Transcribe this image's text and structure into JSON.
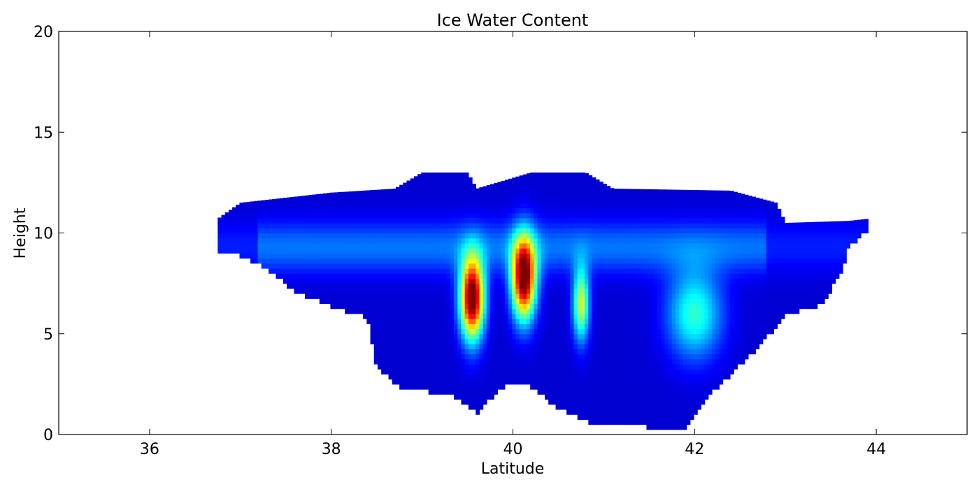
{
  "chart_data": {
    "type": "heatmap",
    "title": "Ice Water Content",
    "xlabel": "Latitude",
    "ylabel": "Height",
    "xlim": [
      35,
      45
    ],
    "ylim": [
      0,
      20
    ],
    "xticks": [
      36,
      38,
      40,
      42,
      44
    ],
    "yticks": [
      0,
      5,
      10,
      15,
      20
    ],
    "colormap": "jet",
    "grid": false,
    "colorbar": false,
    "field_extent": {
      "top_height_profile": [
        [
          36.75,
          10.7
        ],
        [
          37.0,
          11.5
        ],
        [
          37.6,
          11.8
        ],
        [
          38.0,
          12.0
        ],
        [
          38.7,
          12.2
        ],
        [
          39.0,
          13.0
        ],
        [
          39.5,
          13.0
        ],
        [
          39.6,
          12.2
        ],
        [
          40.2,
          13.0
        ],
        [
          40.8,
          13.0
        ],
        [
          41.1,
          12.2
        ],
        [
          42.4,
          12.1
        ],
        [
          42.9,
          11.5
        ],
        [
          43.0,
          10.5
        ],
        [
          43.7,
          10.6
        ],
        [
          43.9,
          10.7
        ]
      ],
      "bottom_height_profile": [
        [
          36.75,
          9.0
        ],
        [
          37.0,
          9.0
        ],
        [
          37.3,
          8.3
        ],
        [
          37.6,
          7.2
        ],
        [
          38.0,
          6.5
        ],
        [
          38.4,
          5.9
        ],
        [
          38.5,
          3.5
        ],
        [
          38.8,
          2.3
        ],
        [
          39.3,
          2.2
        ],
        [
          39.6,
          1.2
        ],
        [
          39.9,
          2.5
        ],
        [
          40.2,
          2.5
        ],
        [
          40.5,
          1.4
        ],
        [
          40.9,
          0.6
        ],
        [
          41.4,
          0.6
        ],
        [
          41.7,
          0.25
        ],
        [
          41.9,
          0.5
        ],
        [
          42.1,
          1.8
        ],
        [
          42.6,
          4.0
        ],
        [
          43.0,
          6.0
        ],
        [
          43.4,
          6.6
        ],
        [
          43.6,
          8.0
        ],
        [
          43.7,
          9.5
        ],
        [
          43.9,
          10.2
        ]
      ]
    },
    "high_value_cores": [
      {
        "lat": 39.55,
        "height": 6.8,
        "level": "maximum"
      },
      {
        "lat": 40.12,
        "height": 7.8,
        "level": "maximum"
      },
      {
        "lat": 40.75,
        "height": 6.5,
        "level": "moderate"
      },
      {
        "lat": 42.0,
        "height": 6.0,
        "level": "low-moderate"
      }
    ]
  }
}
